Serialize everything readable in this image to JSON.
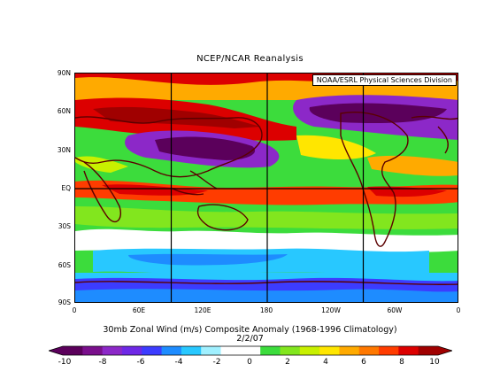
{
  "title": "NCEP/NCAR Reanalysis",
  "credit": "NOAA/ESRL Physical Sciences Division",
  "lat_labels": [
    "90N",
    "60N",
    "30N",
    "EQ",
    "30S",
    "60S",
    "90S"
  ],
  "lon_labels": [
    "0",
    "60E",
    "120E",
    "180",
    "120W",
    "60W",
    "0"
  ],
  "caption": "30mb Zonal Wind (m/s) Composite Anomaly (1968-1996 Climatology)",
  "date": "2/2/07",
  "colorbar": {
    "labels": [
      "-10",
      "-8",
      "-6",
      "-4",
      "-2",
      "0",
      "2",
      "4",
      "6",
      "8",
      "10"
    ],
    "colors": [
      "#5b005b",
      "#7a0f8c",
      "#8c28c8",
      "#6e28e6",
      "#3c3cff",
      "#1e8cff",
      "#28c8ff",
      "#a0f0ff",
      "#ffffff",
      "#ffffff",
      "#3cdc3c",
      "#82e61e",
      "#c8f000",
      "#ffe600",
      "#ffaa00",
      "#ff7800",
      "#ff3c00",
      "#dc0000",
      "#a00000"
    ]
  }
}
